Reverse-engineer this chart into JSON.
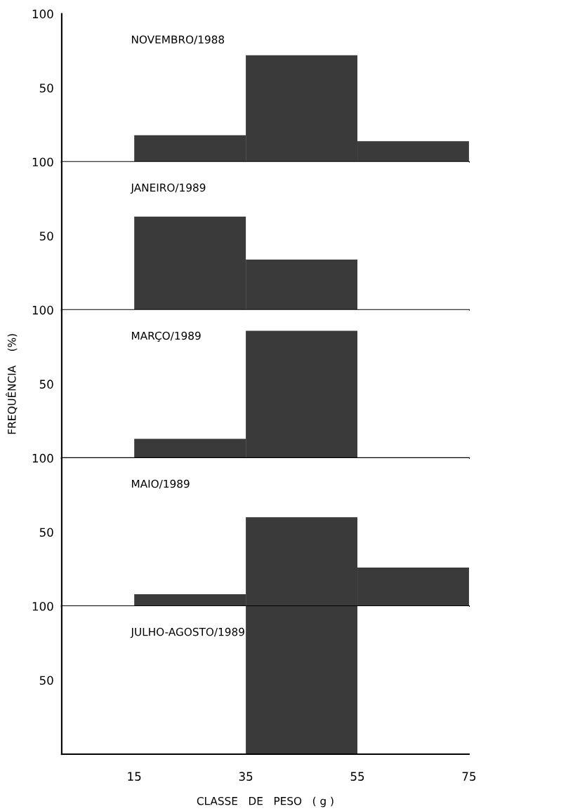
{
  "chart_data": [
    {
      "type": "histogram",
      "title": "NOVEMBRO/1988",
      "bins": [
        15,
        35,
        55,
        75
      ],
      "values": [
        18,
        72,
        14
      ],
      "color": "#3a3a3a",
      "xlim": [
        2,
        75
      ],
      "ylim": [
        0,
        100
      ],
      "yticks": [
        50,
        100
      ],
      "tick_labels": "y"
    },
    {
      "type": "histogram",
      "title": "JANEIRO/1989",
      "bins": [
        15,
        35,
        55,
        75
      ],
      "values": [
        63,
        34,
        0
      ],
      "color": "#3a3a3a",
      "xlim": [
        2,
        75
      ],
      "ylim": [
        0,
        100
      ],
      "yticks": [
        50,
        100
      ],
      "tick_labels": "y"
    },
    {
      "type": "histogram",
      "title": "MARÇO/1989",
      "ylabel": "FREQUÊNCIA    (%)",
      "bins": [
        15,
        35,
        55,
        75
      ],
      "values": [
        13,
        86,
        0
      ],
      "color": "#3a3a3a",
      "xlim": [
        2,
        75
      ],
      "ylim": [
        0,
        100
      ],
      "yticks": [
        50,
        100
      ],
      "tick_labels": "y"
    },
    {
      "type": "histogram",
      "title": "MAIO/1989",
      "bins": [
        15,
        35,
        55,
        75
      ],
      "values": [
        8,
        60,
        26
      ],
      "color": "#3a3a3a",
      "xlim": [
        2,
        75
      ],
      "ylim": [
        0,
        100
      ],
      "yticks": [
        50,
        100
      ],
      "tick_labels": "y"
    },
    {
      "type": "histogram",
      "title": "JULHO-AGOSTO/1989",
      "xlabel": "CLASSE   DE   PESO   ( g )",
      "bins": [
        15,
        35,
        55,
        75
      ],
      "values": [
        0,
        100,
        0
      ],
      "color": "#3a3a3a",
      "xlim": [
        2,
        75
      ],
      "ylim": [
        0,
        100
      ],
      "yticks": [
        50,
        100
      ],
      "xticks": [
        15,
        35,
        55,
        75
      ]
    }
  ]
}
